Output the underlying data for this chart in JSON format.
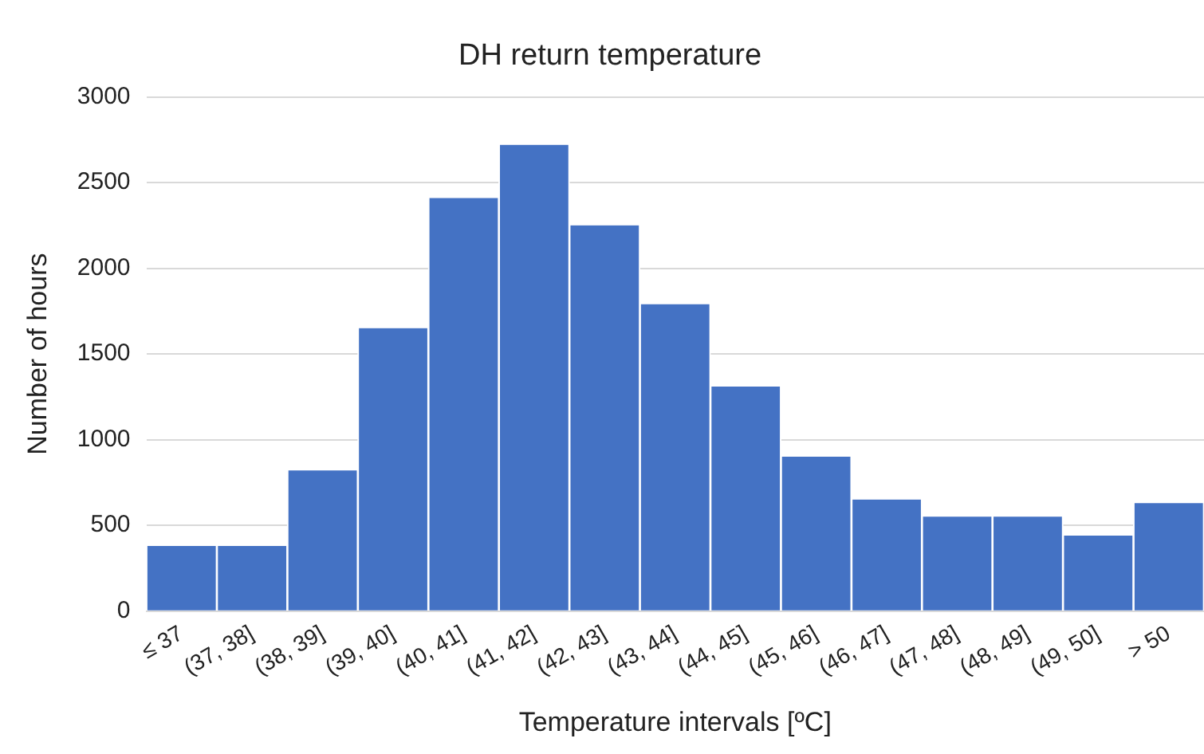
{
  "chart_data": {
    "type": "bar",
    "title": "DH return temperature",
    "xlabel": "Temperature intervals [ºC]",
    "ylabel": "Number of hours",
    "categories": [
      "≤ 37",
      "(37, 38]",
      "(38, 39]",
      "(39, 40]",
      "(40, 41]",
      "(41, 42]",
      "(42, 43]",
      "(43, 44]",
      "(44, 45]",
      "(45, 46]",
      "(46, 47]",
      "(47, 48]",
      "(48, 49]",
      "(49, 50]",
      "> 50"
    ],
    "values": [
      380,
      380,
      820,
      1650,
      2410,
      2720,
      2250,
      1790,
      1310,
      900,
      650,
      550,
      550,
      440,
      630
    ],
    "color": "#4472c4",
    "ylim": [
      0,
      3000
    ],
    "yticks": [
      0,
      500,
      1000,
      1500,
      2000,
      2500,
      3000
    ],
    "grid": "y",
    "legend": false
  }
}
